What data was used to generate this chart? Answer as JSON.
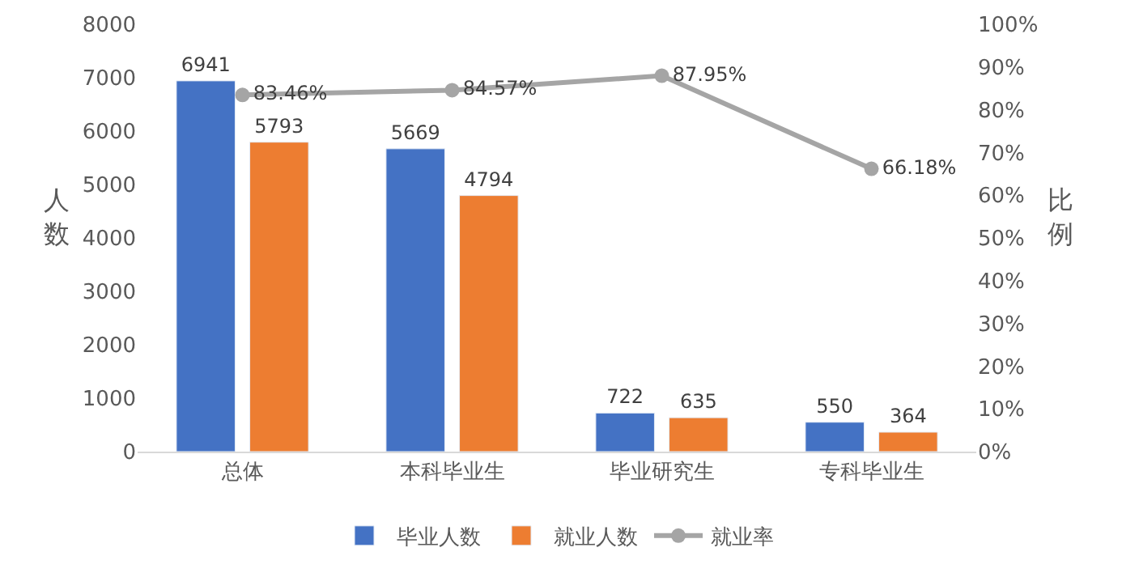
{
  "chart_data": {
    "type": "bar",
    "categories": [
      "总体",
      "本科毕业生",
      "毕业研究生",
      "专科毕业生"
    ],
    "ylabel": "人数",
    "y2label": "比例",
    "series": [
      {
        "name": "毕业人数",
        "color": "#4472c4",
        "values": [
          6941,
          5669,
          722,
          550
        ],
        "value_labels": [
          "6941",
          "5669",
          "722",
          "550"
        ]
      },
      {
        "name": "就业人数",
        "color": "#ed7d31",
        "values": [
          5793,
          4794,
          635,
          364
        ],
        "value_labels": [
          "5793",
          "4794",
          "635",
          "364"
        ]
      },
      {
        "name": "就业率",
        "type": "line",
        "axis": "y2",
        "color": "#a5a5a5",
        "marker": "circle",
        "line_style": "solid",
        "values": [
          83.46,
          84.57,
          87.95,
          66.18
        ],
        "value_labels": [
          "83.46%",
          "84.57%",
          "87.95%",
          "66.18%"
        ]
      }
    ],
    "ylim": [
      0,
      8000
    ],
    "yticks": [
      0,
      1000,
      2000,
      3000,
      4000,
      5000,
      6000,
      7000,
      8000
    ],
    "y2lim": [
      0,
      100
    ],
    "y2ticks": [
      {
        "value": 0,
        "label": "0%"
      },
      {
        "value": 10,
        "label": "10%"
      },
      {
        "value": 20,
        "label": "20%"
      },
      {
        "value": 30,
        "label": "30%"
      },
      {
        "value": 40,
        "label": "40%"
      },
      {
        "value": 50,
        "label": "50%"
      },
      {
        "value": 60,
        "label": "60%"
      },
      {
        "value": 70,
        "label": "70%"
      },
      {
        "value": 80,
        "label": "80%"
      },
      {
        "value": 90,
        "label": "90%"
      },
      {
        "value": 100,
        "label": "100%"
      }
    ],
    "legend": "bottom"
  }
}
